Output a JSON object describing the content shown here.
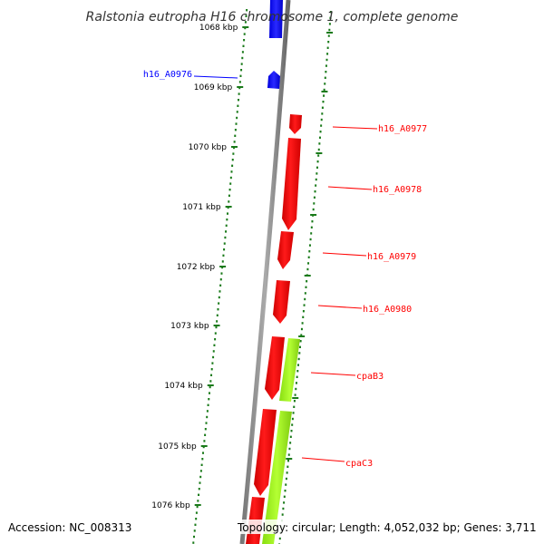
{
  "title": "Ralstonia eutropha H16 chromosome 1, complete genome",
  "footer": {
    "accession": "Accession: NC_008313",
    "topology": "Topology: circular; Length: 4,052,032 bp; Genes: 3,711"
  },
  "colors": {
    "plus_strand": "#0000ff",
    "minus_strand": "#ff0000",
    "feature_green": "#aaff22",
    "backbone": "#888888",
    "tick": "#1a7a1a"
  },
  "ruler_ticks": [
    {
      "label": "1068 kbp"
    },
    {
      "label": "1069 kbp"
    },
    {
      "label": "1070 kbp"
    },
    {
      "label": "1071 kbp"
    },
    {
      "label": "1072 kbp"
    },
    {
      "label": "1073 kbp"
    },
    {
      "label": "1074 kbp"
    },
    {
      "label": "1075 kbp"
    },
    {
      "label": "1076 kbp"
    }
  ],
  "gene_labels": [
    {
      "name": "h16_A0976",
      "strand": "plus"
    },
    {
      "name": "h16_A0977",
      "strand": "minus"
    },
    {
      "name": "h16_A0978",
      "strand": "minus"
    },
    {
      "name": "h16_A0979",
      "strand": "minus"
    },
    {
      "name": "h16_A0980",
      "strand": "minus"
    },
    {
      "name": "cpaB3",
      "strand": "minus"
    },
    {
      "name": "cpaC3",
      "strand": "minus"
    }
  ]
}
